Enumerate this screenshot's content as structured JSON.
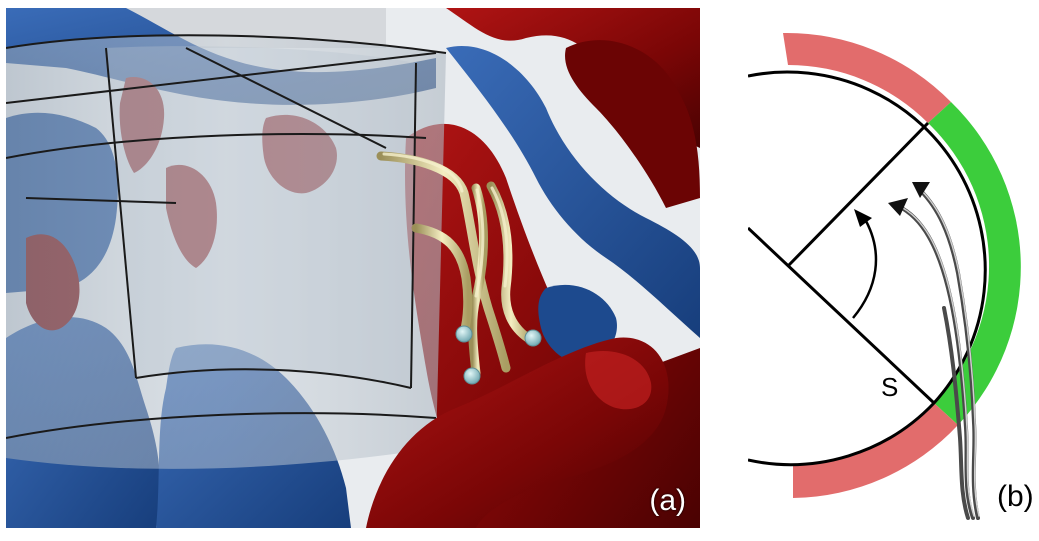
{
  "panel_a": {
    "label": "(a)",
    "colors": {
      "positive_isosurface": "#8a0a0a",
      "negative_isosurface": "#1f4f96",
      "streamline": "#e6deaa",
      "shell": "#a8b4c0",
      "seed": "#9ccfd6"
    }
  },
  "panel_b": {
    "label": "(b)",
    "angle_label": "S",
    "colors": {
      "arc_outer": "#e26c6c",
      "arc_middle": "#3ccd3c",
      "lines": "#000000",
      "streamline": "#555555"
    }
  }
}
